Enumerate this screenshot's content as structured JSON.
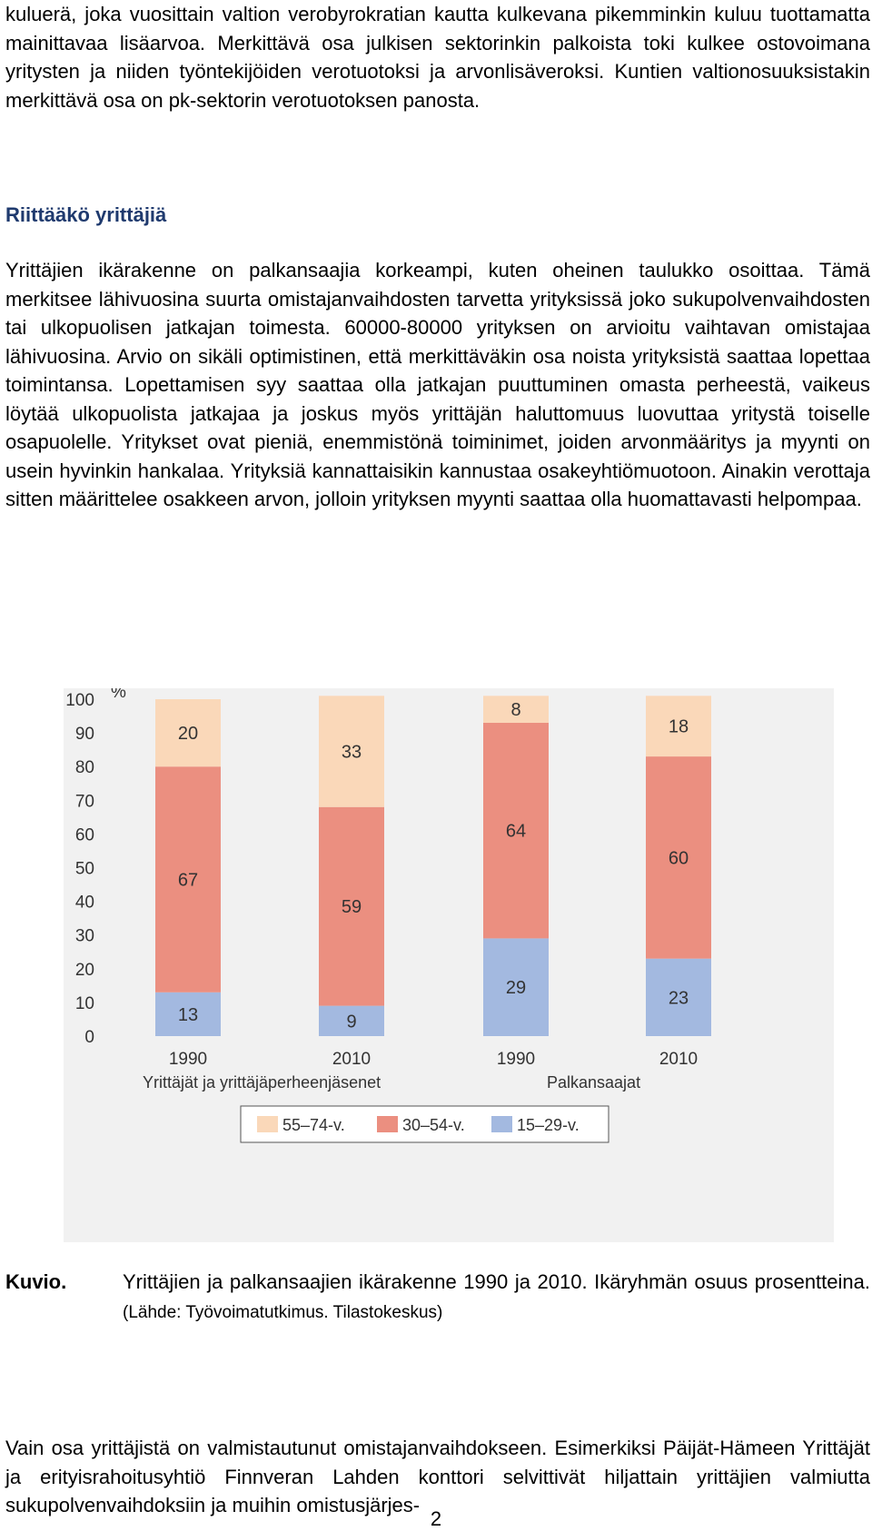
{
  "paragraphs": {
    "p1": "kuluerä, joka vuosittain valtion verobyrokratian kautta kulkevana pikemminkin kuluu tuottamatta mainittavaa lisäarvoa. Merkittävä osa julkisen sektorinkin palkoista toki kulkee ostovoimana yritysten ja niiden työntekijöiden verotuotoksi ja arvonlisäveroksi. Kuntien valtionosuuksistakin merkittävä osa on pk-sektorin verotuotoksen panosta.",
    "p2": "Yrittäjien ikärakenne on palkansaajia korkeampi, kuten oheinen taulukko osoittaa. Tämä merkitsee lähivuosina suurta omistajanvaihdosten tarvetta yrityksissä joko sukupolvenvaihdosten tai ulkopuolisen jatkajan toimesta. 60000-80000 yrityksen on arvioitu vaihtavan omistajaa lähivuosina. Arvio on sikäli optimistinen, että merkittäväkin osa noista yrityksistä saattaa lopettaa toimintansa. Lopettamisen syy saattaa olla jatkajan puuttuminen omasta perheestä, vaikeus löytää ulkopuolista jatkajaa ja joskus myös yrittäjän haluttomuus luovuttaa yritystä toiselle osapuolelle. Yritykset ovat pieniä, enemmistönä toiminimet, joiden arvonmääritys ja myynti on usein hyvinkin hankalaa. Yrityksiä kannattaisikin kannustaa osakeyhtiömuotoon. Ainakin verottaja sitten määrittelee osakkeen arvon, jolloin yrityksen myynti saattaa olla huomattavasti helpompaa.",
    "p3": "Vain osa yrittäjistä on valmistautunut omistajanvaihdokseen. Esimerkiksi Päijät-Hämeen Yrittäjät ja erityisrahoitusyhtiö Finnveran Lahden konttori selvittivät hiljattain yrittäjien valmiutta sukupolvenvaihdoksiin ja muihin omistusjärjes-"
  },
  "heading": "Riittääkö yrittäjiä",
  "caption": {
    "label": "Kuvio.",
    "text": "Yrittäjien ja palkansaajien ikärakenne 1990 ja 2010. Ikäryhmän osuus prosentteina.",
    "source": "(Lähde: Työvoimatutkimus. Tilastokeskus)"
  },
  "page_number": "2",
  "chart_data": {
    "type": "bar",
    "stacked": true,
    "y_unit": "%",
    "ylim": [
      0,
      100
    ],
    "yticks": [
      "0",
      "10",
      "20",
      "30",
      "40",
      "50",
      "60",
      "70",
      "80",
      "90",
      "100"
    ],
    "categories": [
      "1990",
      "2010",
      "1990",
      "2010"
    ],
    "groups": [
      "Yrittäjät ja yrittäjäperheenjäsenet",
      "Palkansaajat"
    ],
    "series": [
      {
        "name": "15–29-v.",
        "color": "#a3b9e0",
        "values": [
          13,
          9,
          29,
          23
        ]
      },
      {
        "name": "30–54-v.",
        "color": "#eb8f80",
        "values": [
          67,
          59,
          64,
          60
        ]
      },
      {
        "name": "55–74-v.",
        "color": "#fad8b9",
        "values": [
          20,
          33,
          8,
          18
        ]
      }
    ],
    "legend_order": [
      "55–74-v.",
      "30–54-v.",
      "15–29-v."
    ],
    "legend_position": "bottom",
    "grid": false
  }
}
